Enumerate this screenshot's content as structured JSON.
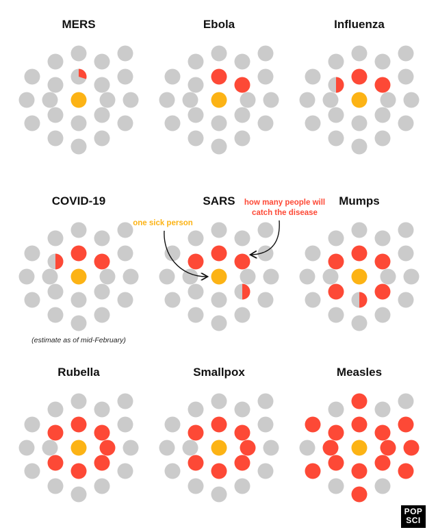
{
  "chart_data": {
    "type": "dot-grid",
    "colors": {
      "healthy": "#cbcbcb",
      "infected": "#fd4936",
      "patient_zero": "#fcb315"
    },
    "population_per_panel": 21,
    "panels": [
      {
        "title": "MERS",
        "infected": 0.3,
        "note": ""
      },
      {
        "title": "Ebola",
        "infected": 2,
        "note": ""
      },
      {
        "title": "Influenza",
        "infected": 2.5,
        "note": ""
      },
      {
        "title": "COVID-19",
        "infected": 2.5,
        "note": "(estimate as of mid-February)"
      },
      {
        "title": "SARS",
        "infected": 3.5,
        "note": ""
      },
      {
        "title": "Mumps",
        "infected": 5.5,
        "note": ""
      },
      {
        "title": "Rubella",
        "infected": 7,
        "note": ""
      },
      {
        "title": "Smallpox",
        "infected": 7,
        "note": ""
      },
      {
        "title": "Measles",
        "infected": 15,
        "note": ""
      }
    ],
    "annotations": {
      "sick_person": "one sick person",
      "catch_line1": "how many people will",
      "catch_line2": "catch the disease"
    }
  },
  "logo": {
    "line1": "POP",
    "line2": "SCI"
  }
}
